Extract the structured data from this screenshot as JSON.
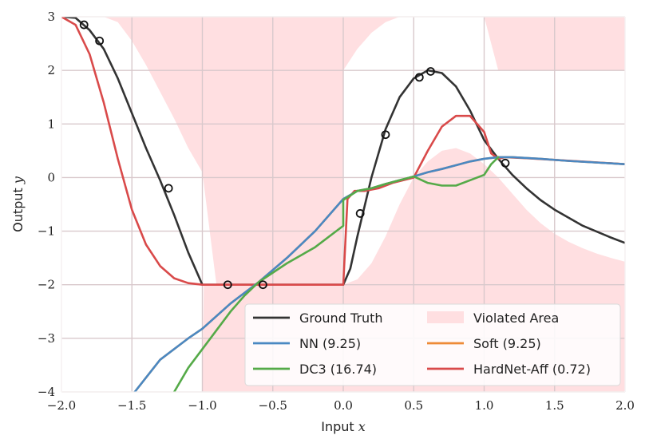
{
  "chart_data": {
    "type": "line",
    "xlabel_text": "Input",
    "xlabel_var": "x",
    "ylabel_text": "Output",
    "ylabel_var": "y",
    "xlim": [
      -2.0,
      2.0
    ],
    "ylim": [
      -4,
      3
    ],
    "xticks": [
      -2.0,
      -1.5,
      -1.0,
      -0.5,
      0.0,
      0.5,
      1.0,
      1.5,
      2.0
    ],
    "xtick_labels": [
      "−2.0",
      "−1.5",
      "−1.0",
      "−0.5",
      "0.0",
      "0.5",
      "1.0",
      "1.5",
      "2.0"
    ],
    "yticks": [
      -4,
      -3,
      -2,
      -1,
      0,
      1,
      2,
      3
    ],
    "ytick_labels": [
      "−4",
      "−3",
      "−2",
      "−1",
      "0",
      "1",
      "2",
      "3"
    ],
    "grid": true,
    "legend_position": "lower-right",
    "colors": {
      "ground_truth": "#333333",
      "nn": "#4a88c2",
      "dc3": "#55aa48",
      "soft": "#ee8a36",
      "hardnet": "#d94a4a",
      "violated": "#ffdfe1",
      "grid": "#d9c9cc",
      "background": "#ffffff"
    },
    "legend": [
      {
        "key": "ground_truth",
        "label": "Ground Truth",
        "kind": "line"
      },
      {
        "key": "violated",
        "label": "Violated Area",
        "kind": "patch"
      },
      {
        "key": "nn",
        "label": "NN (9.25)",
        "kind": "line"
      },
      {
        "key": "soft",
        "label": "Soft (9.25)",
        "kind": "line"
      },
      {
        "key": "dc3",
        "label": "DC3 (16.74)",
        "kind": "line"
      },
      {
        "key": "hardnet",
        "label": "HardNet-Aff (0.72)",
        "kind": "line"
      }
    ],
    "series": [
      {
        "key": "ground_truth",
        "x": [
          -2.0,
          -1.9,
          -1.8,
          -1.7,
          -1.6,
          -1.5,
          -1.4,
          -1.3,
          -1.2,
          -1.1,
          -1.0,
          -0.5,
          0.0,
          0.05,
          0.1,
          0.2,
          0.3,
          0.4,
          0.5,
          0.6,
          0.7,
          0.8,
          0.9,
          1.0,
          1.1,
          1.2,
          1.3,
          1.4,
          1.5,
          1.7,
          1.9,
          2.0
        ],
        "y": [
          3.0,
          2.98,
          2.75,
          2.4,
          1.85,
          1.2,
          0.55,
          -0.05,
          -0.7,
          -1.4,
          -2.0,
          -2.0,
          -2.0,
          -1.7,
          -1.1,
          0.0,
          0.9,
          1.5,
          1.85,
          2.0,
          1.95,
          1.7,
          1.25,
          0.7,
          0.35,
          0.05,
          -0.2,
          -0.42,
          -0.6,
          -0.9,
          -1.12,
          -1.22
        ]
      },
      {
        "key": "hardnet",
        "x": [
          -2.0,
          -1.9,
          -1.8,
          -1.7,
          -1.6,
          -1.5,
          -1.4,
          -1.3,
          -1.2,
          -1.1,
          -1.0,
          -0.5,
          0.0,
          0.03,
          0.08,
          0.15,
          0.25,
          0.35,
          0.5,
          0.6,
          0.7,
          0.8,
          0.9,
          1.0,
          1.05,
          1.1,
          1.15,
          1.3,
          1.5,
          1.75,
          2.0
        ],
        "y": [
          3.0,
          2.85,
          2.3,
          1.4,
          0.35,
          -0.6,
          -1.25,
          -1.65,
          -1.88,
          -1.97,
          -2.0,
          -2.0,
          -2.0,
          -0.4,
          -0.25,
          -0.25,
          -0.2,
          -0.1,
          0.0,
          0.5,
          0.95,
          1.15,
          1.15,
          0.85,
          0.45,
          0.35,
          0.38,
          0.36,
          0.33,
          0.29,
          0.25
        ]
      },
      {
        "key": "soft",
        "x": [
          -1.48,
          -1.3,
          -1.1,
          -1.0,
          -0.8,
          -0.6,
          -0.4,
          -0.2,
          0.0,
          0.1,
          0.2,
          0.3,
          0.4,
          0.5,
          0.6,
          0.7,
          0.8,
          0.9,
          1.0,
          1.1,
          1.2,
          1.4,
          1.6,
          1.8,
          2.0
        ],
        "y": [
          -4.0,
          -3.4,
          -3.0,
          -2.82,
          -2.35,
          -1.95,
          -1.5,
          -1.0,
          -0.4,
          -0.25,
          -0.2,
          -0.12,
          -0.05,
          0.02,
          0.1,
          0.16,
          0.23,
          0.3,
          0.35,
          0.38,
          0.38,
          0.35,
          0.31,
          0.28,
          0.25
        ]
      },
      {
        "key": "nn",
        "x": [
          -1.48,
          -1.3,
          -1.1,
          -1.0,
          -0.8,
          -0.6,
          -0.4,
          -0.2,
          0.0,
          0.1,
          0.2,
          0.3,
          0.4,
          0.5,
          0.6,
          0.7,
          0.8,
          0.9,
          1.0,
          1.1,
          1.2,
          1.4,
          1.6,
          1.8,
          2.0
        ],
        "y": [
          -4.0,
          -3.4,
          -3.0,
          -2.82,
          -2.35,
          -1.95,
          -1.5,
          -1.0,
          -0.4,
          -0.25,
          -0.2,
          -0.12,
          -0.05,
          0.02,
          0.1,
          0.16,
          0.23,
          0.3,
          0.35,
          0.38,
          0.38,
          0.35,
          0.31,
          0.28,
          0.25
        ]
      },
      {
        "key": "dc3",
        "x": [
          -1.2,
          -1.1,
          -1.0,
          -0.9,
          -0.8,
          -0.7,
          -0.6,
          -0.4,
          -0.2,
          0.0,
          0.0,
          0.1,
          0.2,
          0.3,
          0.4,
          0.5,
          0.6,
          0.7,
          0.8,
          0.9,
          1.0,
          1.05,
          1.1
        ],
        "y": [
          -4.0,
          -3.55,
          -3.2,
          -2.85,
          -2.5,
          -2.2,
          -1.95,
          -1.6,
          -1.3,
          -0.9,
          -0.42,
          -0.25,
          -0.2,
          -0.12,
          -0.05,
          0.02,
          -0.1,
          -0.15,
          -0.15,
          -0.05,
          0.05,
          0.25,
          0.38
        ]
      }
    ],
    "violated_regions": {
      "upper_boundary": {
        "x": [
          -2.0,
          -1.9,
          -1.8,
          -1.7,
          -1.6,
          -1.5,
          -1.4,
          -1.3,
          -1.2,
          -1.1,
          -1.0,
          -0.9,
          -0.5,
          -0.01,
          0.0,
          0.1,
          0.2,
          0.3,
          0.4,
          0.5,
          0.6,
          0.7,
          0.8,
          0.9,
          1.0,
          1.1,
          1.2,
          1.3,
          1.4,
          1.5,
          1.6,
          1.7,
          1.8,
          1.9,
          2.0
        ],
        "y": [
          3.0,
          3.0,
          3.0,
          3.0,
          2.9,
          2.55,
          2.1,
          1.6,
          1.1,
          0.55,
          0.1,
          -2.0,
          -2.0,
          -2.0,
          2.0,
          2.4,
          2.7,
          2.9,
          3.0,
          3.0,
          3.0,
          3.0,
          3.0,
          3.0,
          3.0,
          2.0,
          2.0,
          2.0,
          2.0,
          2.0,
          2.0,
          2.0,
          2.0,
          2.0,
          2.0
        ]
      },
      "lower_boundary": {
        "x": [
          -2.0,
          -1.0,
          -0.99,
          -0.01,
          0.0,
          0.1,
          0.2,
          0.3,
          0.4,
          0.5,
          0.6,
          0.7,
          0.8,
          0.9,
          1.0,
          1.1,
          1.2,
          1.3,
          1.4,
          1.5,
          1.6,
          1.7,
          1.8,
          1.9,
          2.0
        ],
        "y": [
          -4.0,
          -4.0,
          -2.0,
          -2.0,
          -2.0,
          -1.9,
          -1.6,
          -1.1,
          -0.5,
          0.0,
          0.3,
          0.5,
          0.55,
          0.45,
          0.25,
          0.0,
          -0.3,
          -0.6,
          -0.85,
          -1.05,
          -1.2,
          -1.32,
          -1.42,
          -1.5,
          -1.57
        ]
      }
    },
    "markers": {
      "key": "ground_truth",
      "x": [
        -1.84,
        -1.73,
        -1.24,
        -0.82,
        -0.57,
        0.12,
        0.3,
        0.54,
        0.62,
        1.15
      ],
      "y": [
        2.85,
        2.55,
        -0.2,
        -2.0,
        -2.0,
        -0.67,
        0.8,
        1.87,
        1.98,
        0.27
      ]
    }
  }
}
